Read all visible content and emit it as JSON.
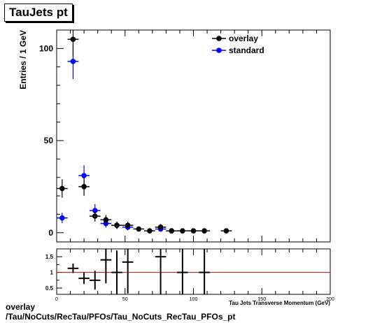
{
  "title": "TauJets pt",
  "footer": {
    "line1": "overlay",
    "line2": "/Tau/NoCuts/RecTau/PFOs/Tau_NoCuts_RecTau_PFOs_pt"
  },
  "colors": {
    "overlay": "#000000",
    "standard": "#0000ff",
    "ratio_line": "#cc0000"
  },
  "chart_data": [
    {
      "type": "scatter",
      "ylabel": "Entries / 1 GeV",
      "xlim": [
        0,
        200
      ],
      "ylim": [
        -5,
        110
      ],
      "yticks": [
        0,
        50,
        100
      ],
      "ytick_labels": [
        "0",
        "50",
        "100"
      ],
      "legend_position": "top-right",
      "series": [
        {
          "name": "overlay",
          "points": [
            {
              "x": 4,
              "y": 24,
              "yerr": 5,
              "xerr": 4
            },
            {
              "x": 12,
              "y": 105,
              "yerr": 10,
              "xerr": 4
            },
            {
              "x": 20,
              "y": 25,
              "yerr": 5,
              "xerr": 4
            },
            {
              "x": 28,
              "y": 9,
              "yerr": 3,
              "xerr": 4
            },
            {
              "x": 36,
              "y": 7,
              "yerr": 2.6,
              "xerr": 4
            },
            {
              "x": 44,
              "y": 4,
              "yerr": 2,
              "xerr": 4
            },
            {
              "x": 52,
              "y": 4,
              "yerr": 2,
              "xerr": 4
            },
            {
              "x": 60,
              "y": 2,
              "yerr": 1.4,
              "xerr": 4
            },
            {
              "x": 68,
              "y": 1,
              "yerr": 1,
              "xerr": 4
            },
            {
              "x": 76,
              "y": 3,
              "yerr": 1.7,
              "xerr": 4
            },
            {
              "x": 84,
              "y": 1,
              "yerr": 1,
              "xerr": 4
            },
            {
              "x": 92,
              "y": 1,
              "yerr": 1,
              "xerr": 4
            },
            {
              "x": 100,
              "y": 1,
              "yerr": 1,
              "xerr": 4
            },
            {
              "x": 108,
              "y": 1,
              "yerr": 1,
              "xerr": 4
            },
            {
              "x": 124,
              "y": 1,
              "yerr": 1,
              "xerr": 4
            }
          ]
        },
        {
          "name": "standard",
          "points": [
            {
              "x": 4,
              "y": 8,
              "yerr": 2.8,
              "xerr": 4
            },
            {
              "x": 12,
              "y": 93,
              "yerr": 9.6,
              "xerr": 4
            },
            {
              "x": 20,
              "y": 31,
              "yerr": 5.6,
              "xerr": 4
            },
            {
              "x": 28,
              "y": 12,
              "yerr": 3.5,
              "xerr": 4
            },
            {
              "x": 36,
              "y": 5,
              "yerr": 2.2,
              "xerr": 4
            },
            {
              "x": 44,
              "y": 4,
              "yerr": 2,
              "xerr": 4
            },
            {
              "x": 52,
              "y": 3,
              "yerr": 1.7,
              "xerr": 4
            },
            {
              "x": 76,
              "y": 2,
              "yerr": 1.4,
              "xerr": 4
            },
            {
              "x": 84,
              "y": 1,
              "yerr": 1,
              "xerr": 4
            }
          ]
        }
      ]
    },
    {
      "type": "scatter",
      "xlabel": "Tau Jets Transverse Momentum (GeV)",
      "xlim": [
        0,
        200
      ],
      "ylim": [
        0.3,
        1.75
      ],
      "xticks": [
        0,
        50,
        100,
        150,
        200
      ],
      "xtick_labels": [
        "0",
        "50",
        "100",
        "150",
        "200"
      ],
      "yticks": [
        0.5,
        1,
        1.5
      ],
      "ytick_labels": [
        "0.5",
        "1",
        "1.5"
      ],
      "reference_line": 1,
      "points": [
        {
          "x": 12,
          "y": 1.13,
          "yerr": 0.15,
          "xerr": 4
        },
        {
          "x": 20,
          "y": 0.81,
          "yerr": 0.18,
          "xerr": 4
        },
        {
          "x": 28,
          "y": 0.75,
          "yerr": 0.3,
          "xerr": 4
        },
        {
          "x": 36,
          "y": 1.4,
          "yerr": 0.75,
          "xerr": 4
        },
        {
          "x": 44,
          "y": 1.0,
          "yerr": 0.7,
          "xerr": 4
        },
        {
          "x": 52,
          "y": 1.33,
          "yerr": 1.0,
          "xerr": 4
        },
        {
          "x": 76,
          "y": 1.5,
          "yerr": 1.2,
          "xerr": 4
        },
        {
          "x": 92,
          "y": 1.0,
          "yerr": 1.4,
          "xerr": 4
        },
        {
          "x": 108,
          "y": 1.0,
          "yerr": 1.4,
          "xerr": 4
        }
      ]
    }
  ]
}
